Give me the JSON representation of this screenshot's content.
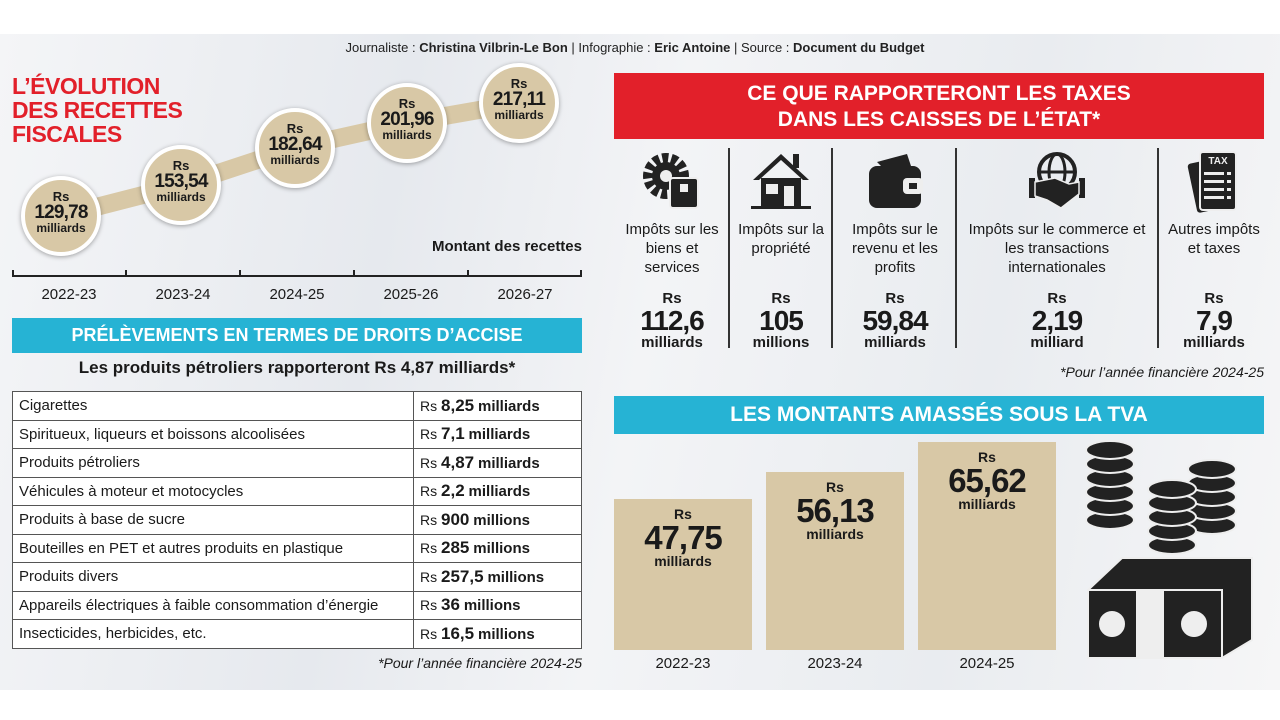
{
  "credits": {
    "journaliste_label": "Journaliste :",
    "journaliste": "Christina Vilbrin-Le Bon",
    "infographie_label": "| Infographie :",
    "infographie": "Eric Antoine",
    "source_label": "| Source :",
    "source": "Document du Budget"
  },
  "evolution": {
    "title_lines": [
      "L’ÉVOLUTION",
      "DES RECETTES",
      "FISCALES"
    ],
    "caption": "Montant des recettes",
    "currency": "Rs",
    "unit": "milliards"
  },
  "accise": {
    "banner": "PRÉLÈVEMENTS EN TERMES DE DROITS D’ACCISE",
    "subtitle": "Les produits pétroliers rapporteront Rs 4,87 milliards*",
    "currency": "Rs",
    "rows": [
      {
        "label": "Cigarettes",
        "value": "8,25",
        "unit": "milliards"
      },
      {
        "label": "Spiritueux, liqueurs et boissons alcoolisées",
        "value": "7,1",
        "unit": "milliards"
      },
      {
        "label": "Produits pétroliers",
        "value": "4,87",
        "unit": "milliards"
      },
      {
        "label": "Véhicules à moteur et motocycles",
        "value": "2,2",
        "unit": "milliards"
      },
      {
        "label": "Produits à base de sucre",
        "value": "900",
        "unit": "millions"
      },
      {
        "label": "Bouteilles en PET et autres produits en plastique",
        "value": "285",
        "unit": "millions"
      },
      {
        "label": "Produits divers",
        "value": "257,5",
        "unit": "millions"
      },
      {
        "label": "Appareils électriques à faible consommation d’énergie",
        "value": "36",
        "unit": "millions"
      },
      {
        "label": "Insecticides, herbicides, etc.",
        "value": "16,5",
        "unit": "millions"
      }
    ],
    "footnote": "*Pour l’année financière 2024-25"
  },
  "taxes": {
    "banner_lines": [
      "CE QUE RAPPORTERONT LES TAXES",
      "DANS LES CAISSES DE L’ÉTAT*"
    ],
    "currency": "Rs",
    "items": [
      {
        "icon": "gear-box-icon",
        "label": "Impôts sur les biens et services",
        "value": "112,6",
        "unit": "milliards"
      },
      {
        "icon": "house-icon",
        "label": "Impôts sur la propriété",
        "value": "105",
        "unit": "millions"
      },
      {
        "icon": "wallet-icon",
        "label": "Impôts sur le revenu et les profits",
        "value": "59,84",
        "unit": "milliards"
      },
      {
        "icon": "globe-handshake-icon",
        "label": "Impôts sur le commerce et les transactions internationales",
        "value": "2,19",
        "unit": "milliard"
      },
      {
        "icon": "tax-document-icon",
        "label": "Autres impôts et taxes",
        "value": "7,9",
        "unit": "milliards"
      }
    ],
    "footnote": "*Pour l’année financière 2024-25"
  },
  "colors": {
    "red": "#e2202a",
    "cyan": "#26b3d4",
    "tan": "#d8c8a6"
  },
  "chart_data": [
    {
      "type": "line",
      "title": "L’ÉVOLUTION DES RECETTES FISCALES",
      "xlabel": "",
      "ylabel": "Montant des recettes (Rs milliards)",
      "categories": [
        "2022-23",
        "2023-24",
        "2024-25",
        "2025-26",
        "2026-27"
      ],
      "values": [
        129.78,
        153.54,
        182.64,
        201.96,
        217.11
      ],
      "labels": [
        "129,78",
        "153,54",
        "182,64",
        "201,96",
        "217,11"
      ]
    },
    {
      "type": "bar",
      "title": "LES MONTANTS AMASSÉS SOUS LA TVA",
      "unit": "milliards",
      "categories": [
        "2022-23",
        "2023-24",
        "2024-25"
      ],
      "values": [
        47.75,
        56.13,
        65.62
      ],
      "labels": [
        "47,75",
        "56,13",
        "65,62"
      ],
      "ylim": [
        0,
        75
      ]
    }
  ]
}
